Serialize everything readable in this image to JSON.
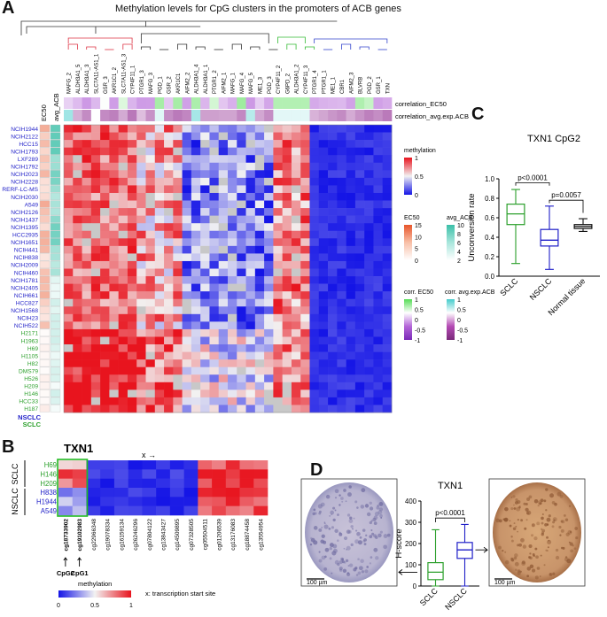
{
  "panel_a": {
    "letter": "A",
    "title": "Methylation levels for CpG clusters in the promoters of ACB genes",
    "col_headers": [
      "EC50",
      "avg_ACB"
    ],
    "columns": [
      "MAFG_2",
      "ALDH3A1_5",
      "ALDH3A1_3",
      "SLC7A11-AS1_1",
      "GSR_3",
      "AKR1C1_2",
      "SLC7A11-AS1_3",
      "CYP4F11_1",
      "PTGR1_3",
      "MAFG_3",
      "PGD_1",
      "GSR_2",
      "AKR1C1",
      "AIFM2_2",
      "ALDH3A1_4",
      "ALDH3A1_1",
      "PTGR1_2",
      "AIFM2_1",
      "MAFG_1",
      "MAFG_4",
      "MAFG_5",
      "ME1_3",
      "PGD_3",
      "CYP4F11_2",
      "G6PD_2",
      "ALDH3A1_2",
      "CYP4F11_3",
      "PTGR1_4",
      "PTGR1_1",
      "ME1_1",
      "CBR1",
      "AIFM2_3",
      "BLVRB",
      "PGD_2",
      "GSR_1",
      "TXN"
    ],
    "corr_rows": [
      "correlation_EC50",
      "correlation_avg.exp.ACB"
    ],
    "rows": [
      {
        "name": "NCIH1944",
        "type": "NSCLC"
      },
      {
        "name": "NCIH2122",
        "type": "NSCLC"
      },
      {
        "name": "HCC15",
        "type": "NSCLC"
      },
      {
        "name": "NCIH1793",
        "type": "NSCLC"
      },
      {
        "name": "LXF289",
        "type": "NSCLC"
      },
      {
        "name": "NCIH1792",
        "type": "NSCLC"
      },
      {
        "name": "NCIH2023",
        "type": "NSCLC"
      },
      {
        "name": "NCIH2228",
        "type": "NSCLC"
      },
      {
        "name": "RERF-LC-MS",
        "type": "NSCLC"
      },
      {
        "name": "NCIH2030",
        "type": "NSCLC"
      },
      {
        "name": "A549",
        "type": "NSCLC"
      },
      {
        "name": "NCIH2126",
        "type": "NSCLC"
      },
      {
        "name": "NCIH1437",
        "type": "NSCLC"
      },
      {
        "name": "NCIH1395",
        "type": "NSCLC"
      },
      {
        "name": "HCC2935",
        "type": "NSCLC"
      },
      {
        "name": "NCIH1651",
        "type": "NSCLC"
      },
      {
        "name": "NCIH441",
        "type": "NSCLC"
      },
      {
        "name": "NCIH838",
        "type": "NSCLC"
      },
      {
        "name": "NCIH2009",
        "type": "NSCLC"
      },
      {
        "name": "NCIH460",
        "type": "NSCLC"
      },
      {
        "name": "NCIH1781",
        "type": "NSCLC"
      },
      {
        "name": "NCIH2405",
        "type": "NSCLC"
      },
      {
        "name": "NCIH661",
        "type": "NSCLC"
      },
      {
        "name": "HCC827",
        "type": "NSCLC"
      },
      {
        "name": "NCIH1568",
        "type": "NSCLC"
      },
      {
        "name": "NCIH23",
        "type": "NSCLC"
      },
      {
        "name": "NCIH522",
        "type": "NSCLC"
      },
      {
        "name": "H2171",
        "type": "SCLC"
      },
      {
        "name": "H1963",
        "type": "SCLC"
      },
      {
        "name": "H69",
        "type": "SCLC"
      },
      {
        "name": "H1105",
        "type": "SCLC"
      },
      {
        "name": "H82",
        "type": "SCLC"
      },
      {
        "name": "DMS79",
        "type": "SCLC"
      },
      {
        "name": "H526",
        "type": "SCLC"
      },
      {
        "name": "H209",
        "type": "SCLC"
      },
      {
        "name": "H146",
        "type": "SCLC"
      },
      {
        "name": "HCC33",
        "type": "SCLC"
      },
      {
        "name": "H187",
        "type": "SCLC"
      }
    ],
    "legend_methylation": {
      "title": "methylation",
      "ticks": [
        "1",
        "0.5",
        "0"
      ]
    },
    "legend_ec50": {
      "title": "EC50",
      "ticks": [
        "15",
        "10",
        "5",
        "0"
      ]
    },
    "legend_avg_acb": {
      "title": "avg_ACB",
      "ticks": [
        "10",
        "8",
        "6",
        "4",
        "2"
      ]
    },
    "legend_corr_ec50": {
      "title": "corr. EC50",
      "ticks": [
        "1",
        "0.5",
        "0",
        "-0.5",
        "-1"
      ]
    },
    "legend_corr_avg": {
      "title": "corr. avg.exp.ACB",
      "ticks": [
        "1",
        "0.5",
        "0",
        "-0.5",
        "-1"
      ]
    },
    "class_legend": {
      "nsclc": "NSCLC",
      "sclc": "SCLC"
    },
    "colors": {
      "nsclc": "#1f1fc8",
      "sclc": "#2ca02c",
      "high": "#e8141e",
      "mid": "#f2f2f2",
      "low": "#1414e6",
      "na": "#c8c8c8"
    }
  },
  "panel_b": {
    "letter": "B",
    "gene": "TXN1",
    "tss_arrow": "x →",
    "groups": [
      "SCLC",
      "NSCLC"
    ],
    "rows": [
      {
        "name": "H69",
        "type": "SCLC"
      },
      {
        "name": "H146",
        "type": "SCLC"
      },
      {
        "name": "H209",
        "type": "SCLC"
      },
      {
        "name": "H838",
        "type": "NSCLC"
      },
      {
        "name": "H1944",
        "type": "NSCLC"
      },
      {
        "name": "A549",
        "type": "NSCLC"
      }
    ],
    "probes": [
      "cg18733902",
      "cg19102983",
      "cg22966348",
      "cg19078334",
      "cg16159134",
      "cg26246296",
      "cg07804122",
      "cg13843427",
      "cg14509895",
      "cg07328505",
      "cg05504511",
      "cg01206539",
      "cg13176083",
      "cg18874458",
      "cg13554954"
    ],
    "cpg_labels": [
      "CpG2",
      "CpG1"
    ],
    "legend_title": "methylation",
    "legend_ticks": [
      "0",
      "0.5",
      "1"
    ],
    "tss_note": "x: transcription start site"
  },
  "panel_c": {
    "letter": "C",
    "title": "TXN1 CpG2",
    "ylabel": "Unconversion rate",
    "categories": [
      "SCLC",
      "NSCLC",
      "Normal tissue"
    ],
    "pvals": [
      "p<0.0001",
      "p=0.0057"
    ]
  },
  "panel_d": {
    "letter": "D",
    "title": "TXN1",
    "ylabel": "H-score",
    "categories": [
      "SCLC",
      "NSCLC"
    ],
    "pval": "p<0.0001",
    "scalebar": "100 µm"
  },
  "chart_data": [
    {
      "type": "box",
      "title": "TXN1 CpG2",
      "ylabel": "Unconversion rate",
      "ylim": [
        0,
        1.0
      ],
      "yticks": [
        0,
        0.2,
        0.4,
        0.6,
        0.8,
        1.0
      ],
      "categories": [
        "SCLC",
        "NSCLC",
        "Normal tissue"
      ],
      "series": [
        {
          "category": "SCLC",
          "min": 0.13,
          "q1": 0.53,
          "median": 0.64,
          "q3": 0.74,
          "max": 0.89,
          "color": "#2ca02c"
        },
        {
          "category": "NSCLC",
          "min": 0.07,
          "q1": 0.31,
          "median": 0.37,
          "q3": 0.48,
          "max": 0.72,
          "color": "#1f1fc8"
        },
        {
          "category": "Normal tissue",
          "min": 0.46,
          "q1": 0.49,
          "median": 0.51,
          "q3": 0.53,
          "max": 0.59,
          "color": "#111111"
        }
      ],
      "annotations": [
        "p<0.0001",
        "p=0.0057"
      ]
    },
    {
      "type": "box",
      "title": "TXN1",
      "ylabel": "H-score",
      "ylim": [
        0,
        400
      ],
      "yticks": [
        0,
        100,
        200,
        300,
        400
      ],
      "categories": [
        "SCLC",
        "NSCLC"
      ],
      "series": [
        {
          "category": "SCLC",
          "min": 0,
          "q1": 30,
          "median": 65,
          "q3": 110,
          "max": 265,
          "color": "#2ca02c"
        },
        {
          "category": "NSCLC",
          "min": 0,
          "q1": 130,
          "median": 170,
          "q3": 205,
          "max": 290,
          "color": "#1f1fc8"
        }
      ],
      "annotations": [
        "p<0.0001"
      ]
    }
  ]
}
